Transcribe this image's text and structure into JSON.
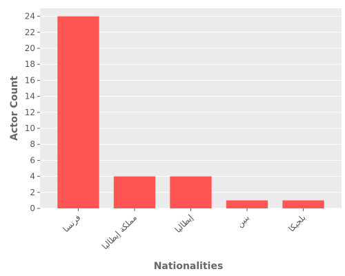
{
  "chart_data": {
    "type": "bar",
    "categories": [
      "فرنسا",
      "مملكة إيطاليا",
      "إيطاليا",
      "بنين",
      "بلجيكا"
    ],
    "values": [
      24,
      4,
      4,
      1,
      1
    ],
    "color": "#ff5555",
    "ylim": [
      0,
      25
    ],
    "yticks": [
      0,
      2,
      4,
      6,
      8,
      10,
      12,
      14,
      16,
      18,
      20,
      22,
      24
    ],
    "grid": true,
    "xlabel": "Nationalities",
    "ylabel": "Actor Count"
  }
}
